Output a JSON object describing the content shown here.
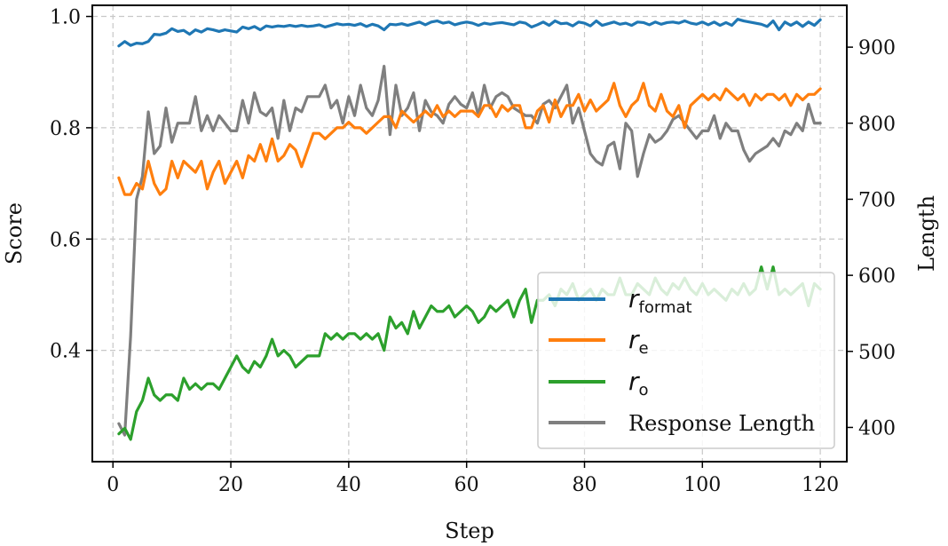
{
  "chart_data": {
    "type": "line",
    "xlabel": "Step",
    "ylabel_left": "Score",
    "ylabel_right": "Length",
    "xlim": [
      -3.5,
      124.5
    ],
    "ylim_left": [
      0.2,
      1.02
    ],
    "ylim_right": [
      355,
      955
    ],
    "xticks": [
      0,
      20,
      40,
      60,
      80,
      100,
      120
    ],
    "yticks_left": [
      0.4,
      0.6,
      0.8,
      1.0
    ],
    "yticks_right": [
      400,
      500,
      600,
      700,
      800,
      900
    ],
    "grid": true,
    "legend_position": "lower-right",
    "series": [
      {
        "name": "r_format",
        "legend_main": "r",
        "legend_sub": "format",
        "axis": "left",
        "color": "#1f77b4",
        "x": [
          1,
          2,
          3,
          4,
          5,
          6,
          7,
          8,
          9,
          10,
          11,
          12,
          13,
          14,
          15,
          16,
          17,
          18,
          19,
          20,
          21,
          22,
          23,
          24,
          25,
          26,
          27,
          28,
          29,
          30,
          31,
          32,
          33,
          34,
          35,
          36,
          37,
          38,
          39,
          40,
          41,
          42,
          43,
          44,
          45,
          46,
          47,
          48,
          49,
          50,
          51,
          52,
          53,
          54,
          55,
          56,
          57,
          58,
          59,
          60,
          61,
          62,
          63,
          64,
          65,
          66,
          67,
          68,
          69,
          70,
          71,
          72,
          73,
          74,
          75,
          76,
          77,
          78,
          79,
          80,
          81,
          82,
          83,
          84,
          85,
          86,
          87,
          88,
          89,
          90,
          91,
          92,
          93,
          94,
          95,
          96,
          97,
          98,
          99,
          100,
          101,
          102,
          103,
          104,
          105,
          106,
          107,
          108,
          109,
          110,
          111,
          112,
          113,
          114,
          115,
          116,
          117,
          118,
          119,
          120
        ],
        "values": [
          0.947,
          0.955,
          0.948,
          0.952,
          0.951,
          0.955,
          0.968,
          0.967,
          0.97,
          0.978,
          0.973,
          0.975,
          0.968,
          0.976,
          0.972,
          0.978,
          0.976,
          0.973,
          0.976,
          0.974,
          0.972,
          0.981,
          0.978,
          0.982,
          0.976,
          0.983,
          0.981,
          0.983,
          0.982,
          0.984,
          0.982,
          0.984,
          0.982,
          0.983,
          0.985,
          0.981,
          0.984,
          0.987,
          0.985,
          0.986,
          0.984,
          0.987,
          0.982,
          0.986,
          0.983,
          0.976,
          0.986,
          0.985,
          0.987,
          0.984,
          0.987,
          0.99,
          0.985,
          0.99,
          0.992,
          0.988,
          0.99,
          0.985,
          0.988,
          0.99,
          0.988,
          0.984,
          0.988,
          0.986,
          0.988,
          0.989,
          0.987,
          0.985,
          0.99,
          0.988,
          0.981,
          0.985,
          0.99,
          0.984,
          0.992,
          0.987,
          0.988,
          0.983,
          0.99,
          0.988,
          0.983,
          0.992,
          0.984,
          0.987,
          0.99,
          0.986,
          0.988,
          0.984,
          0.99,
          0.989,
          0.985,
          0.99,
          0.986,
          0.989,
          0.99,
          0.988,
          0.992,
          0.988,
          0.986,
          0.99,
          0.985,
          0.99,
          0.984,
          0.989,
          0.984,
          0.995,
          0.992,
          0.99,
          0.988,
          0.986,
          0.982,
          0.992,
          0.976,
          0.99,
          0.984,
          0.99,
          0.982,
          0.99,
          0.984,
          0.994
        ]
      },
      {
        "name": "r_e",
        "legend_main": "r",
        "legend_sub": "e",
        "axis": "left",
        "color": "#ff7f0e",
        "x": [
          1,
          2,
          3,
          4,
          5,
          6,
          7,
          8,
          9,
          10,
          11,
          12,
          13,
          14,
          15,
          16,
          17,
          18,
          19,
          20,
          21,
          22,
          23,
          24,
          25,
          26,
          27,
          28,
          29,
          30,
          31,
          32,
          33,
          34,
          35,
          36,
          37,
          38,
          39,
          40,
          41,
          42,
          43,
          44,
          45,
          46,
          47,
          48,
          49,
          50,
          51,
          52,
          53,
          54,
          55,
          56,
          57,
          58,
          59,
          60,
          61,
          62,
          63,
          64,
          65,
          66,
          67,
          68,
          69,
          70,
          71,
          72,
          73,
          74,
          75,
          76,
          77,
          78,
          79,
          80,
          81,
          82,
          83,
          84,
          85,
          86,
          87,
          88,
          89,
          90,
          91,
          92,
          93,
          94,
          95,
          96,
          97,
          98,
          99,
          100,
          101,
          102,
          103,
          104,
          105,
          106,
          107,
          108,
          109,
          110,
          111,
          112,
          113,
          114,
          115,
          116,
          117,
          118,
          119,
          120
        ],
        "values": [
          0.71,
          0.68,
          0.68,
          0.7,
          0.69,
          0.74,
          0.7,
          0.68,
          0.69,
          0.74,
          0.71,
          0.74,
          0.73,
          0.72,
          0.74,
          0.69,
          0.72,
          0.74,
          0.7,
          0.72,
          0.74,
          0.71,
          0.75,
          0.74,
          0.77,
          0.74,
          0.78,
          0.74,
          0.75,
          0.77,
          0.76,
          0.73,
          0.76,
          0.79,
          0.79,
          0.78,
          0.79,
          0.8,
          0.8,
          0.81,
          0.8,
          0.8,
          0.79,
          0.8,
          0.81,
          0.82,
          0.82,
          0.8,
          0.83,
          0.82,
          0.81,
          0.82,
          0.83,
          0.82,
          0.84,
          0.82,
          0.83,
          0.82,
          0.83,
          0.83,
          0.83,
          0.82,
          0.84,
          0.84,
          0.82,
          0.84,
          0.83,
          0.84,
          0.84,
          0.8,
          0.8,
          0.83,
          0.84,
          0.81,
          0.85,
          0.82,
          0.84,
          0.84,
          0.86,
          0.83,
          0.85,
          0.83,
          0.84,
          0.85,
          0.88,
          0.84,
          0.82,
          0.84,
          0.85,
          0.88,
          0.84,
          0.83,
          0.86,
          0.83,
          0.82,
          0.84,
          0.8,
          0.84,
          0.85,
          0.86,
          0.85,
          0.86,
          0.85,
          0.87,
          0.86,
          0.85,
          0.86,
          0.84,
          0.86,
          0.85,
          0.86,
          0.86,
          0.85,
          0.86,
          0.84,
          0.86,
          0.85,
          0.86,
          0.86,
          0.87
        ]
      },
      {
        "name": "r_o",
        "legend_main": "r",
        "legend_sub": "o",
        "axis": "left",
        "color": "#2ca02c",
        "x": [
          1,
          2,
          3,
          4,
          5,
          6,
          7,
          8,
          9,
          10,
          11,
          12,
          13,
          14,
          15,
          16,
          17,
          18,
          19,
          20,
          21,
          22,
          23,
          24,
          25,
          26,
          27,
          28,
          29,
          30,
          31,
          32,
          33,
          34,
          35,
          36,
          37,
          38,
          39,
          40,
          41,
          42,
          43,
          44,
          45,
          46,
          47,
          48,
          49,
          50,
          51,
          52,
          53,
          54,
          55,
          56,
          57,
          58,
          59,
          60,
          61,
          62,
          63,
          64,
          65,
          66,
          67,
          68,
          69,
          70,
          71,
          72,
          73,
          74,
          75,
          76,
          77,
          78,
          79,
          80,
          81,
          82,
          83,
          84,
          85,
          86,
          87,
          88,
          89,
          90,
          91,
          92,
          93,
          94,
          95,
          96,
          97,
          98,
          99,
          100,
          101,
          102,
          103,
          104,
          105,
          106,
          107,
          108,
          109,
          110,
          111,
          112,
          113,
          114,
          115,
          116,
          117,
          118,
          119,
          120
        ],
        "values": [
          0.25,
          0.26,
          0.24,
          0.29,
          0.31,
          0.35,
          0.32,
          0.31,
          0.32,
          0.32,
          0.31,
          0.35,
          0.33,
          0.34,
          0.33,
          0.34,
          0.34,
          0.33,
          0.35,
          0.37,
          0.39,
          0.37,
          0.36,
          0.38,
          0.37,
          0.39,
          0.42,
          0.39,
          0.4,
          0.39,
          0.37,
          0.38,
          0.39,
          0.39,
          0.39,
          0.43,
          0.42,
          0.43,
          0.42,
          0.43,
          0.43,
          0.42,
          0.43,
          0.42,
          0.43,
          0.4,
          0.46,
          0.44,
          0.45,
          0.43,
          0.47,
          0.44,
          0.46,
          0.48,
          0.47,
          0.47,
          0.48,
          0.46,
          0.47,
          0.48,
          0.47,
          0.45,
          0.46,
          0.48,
          0.47,
          0.48,
          0.49,
          0.46,
          0.49,
          0.51,
          0.45,
          0.49,
          0.49,
          0.5,
          0.48,
          0.51,
          0.5,
          0.52,
          0.49,
          0.5,
          0.51,
          0.49,
          0.51,
          0.5,
          0.5,
          0.53,
          0.5,
          0.5,
          0.52,
          0.51,
          0.5,
          0.53,
          0.51,
          0.5,
          0.52,
          0.51,
          0.53,
          0.51,
          0.5,
          0.52,
          0.5,
          0.51,
          0.5,
          0.49,
          0.51,
          0.5,
          0.52,
          0.5,
          0.51,
          0.55,
          0.51,
          0.55,
          0.5,
          0.51,
          0.5,
          0.51,
          0.52,
          0.48,
          0.52,
          0.51
        ]
      },
      {
        "name": "Response Length",
        "legend_label": "Response Length",
        "axis": "right",
        "color": "#7f7f7f",
        "x": [
          1,
          2,
          3,
          4,
          5,
          6,
          7,
          8,
          9,
          10,
          11,
          12,
          13,
          14,
          15,
          16,
          17,
          18,
          19,
          20,
          21,
          22,
          23,
          24,
          25,
          26,
          27,
          28,
          29,
          30,
          31,
          32,
          33,
          34,
          35,
          36,
          37,
          38,
          39,
          40,
          41,
          42,
          43,
          44,
          45,
          46,
          47,
          48,
          49,
          50,
          51,
          52,
          53,
          54,
          55,
          56,
          57,
          58,
          59,
          60,
          61,
          62,
          63,
          64,
          65,
          66,
          67,
          68,
          69,
          70,
          71,
          72,
          73,
          74,
          75,
          76,
          77,
          78,
          79,
          80,
          81,
          82,
          83,
          84,
          85,
          86,
          87,
          88,
          89,
          90,
          91,
          92,
          93,
          94,
          95,
          96,
          97,
          98,
          99,
          100,
          101,
          102,
          103,
          104,
          105,
          106,
          107,
          108,
          109,
          110,
          111,
          112,
          113,
          114,
          115,
          116,
          117,
          118,
          119,
          120
        ],
        "values": [
          405,
          390,
          520,
          700,
          730,
          815,
          760,
          770,
          820,
          775,
          800,
          800,
          800,
          835,
          790,
          810,
          790,
          810,
          800,
          790,
          790,
          830,
          800,
          840,
          815,
          810,
          820,
          780,
          830,
          790,
          820,
          815,
          835,
          835,
          835,
          850,
          820,
          830,
          800,
          835,
          810,
          850,
          820,
          810,
          830,
          875,
          785,
          850,
          810,
          820,
          840,
          790,
          830,
          815,
          810,
          800,
          825,
          835,
          825,
          820,
          840,
          810,
          850,
          820,
          835,
          840,
          835,
          820,
          815,
          810,
          810,
          800,
          825,
          830,
          820,
          835,
          850,
          800,
          820,
          790,
          760,
          750,
          745,
          770,
          775,
          740,
          800,
          790,
          730,
          760,
          785,
          775,
          780,
          790,
          805,
          810,
          800,
          790,
          780,
          790,
          790,
          810,
          780,
          800,
          790,
          790,
          765,
          750,
          760,
          765,
          770,
          780,
          770,
          790,
          785,
          800,
          790,
          825,
          800,
          800
        ]
      }
    ]
  }
}
